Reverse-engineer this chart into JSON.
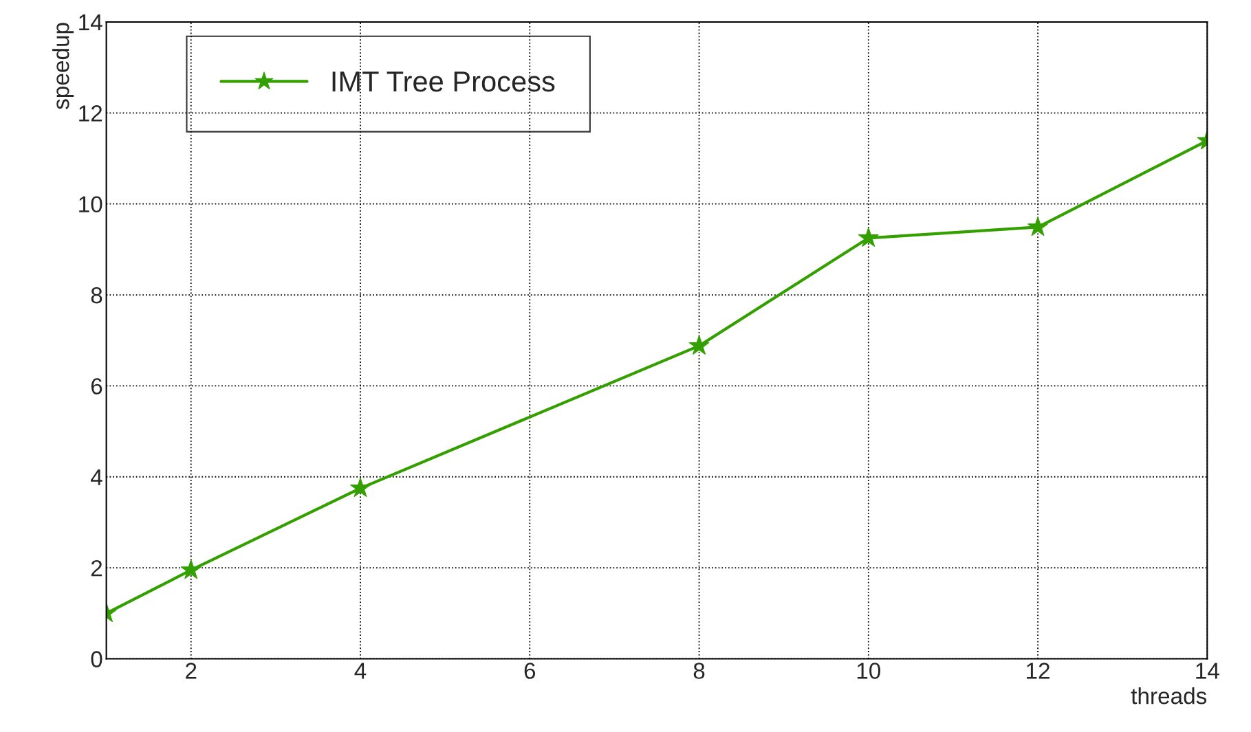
{
  "chart_data": {
    "type": "line",
    "xlabel": "threads",
    "ylabel": "speedup",
    "x": [
      1,
      2,
      4,
      8,
      10,
      12,
      14
    ],
    "series": [
      {
        "name": "IMT Tree Process",
        "color": "#33a000",
        "values": [
          1.0,
          1.95,
          3.75,
          6.88,
          9.25,
          9.49,
          11.39
        ]
      }
    ],
    "xlim": [
      1,
      14
    ],
    "xticks": [
      2,
      4,
      6,
      8,
      10,
      12,
      14
    ],
    "ylim": [
      0,
      14
    ],
    "yticks": [
      0,
      2,
      4,
      6,
      8,
      10,
      12,
      14
    ],
    "grid": true,
    "legend": "top left",
    "marker": "star",
    "line_style": "solid"
  }
}
